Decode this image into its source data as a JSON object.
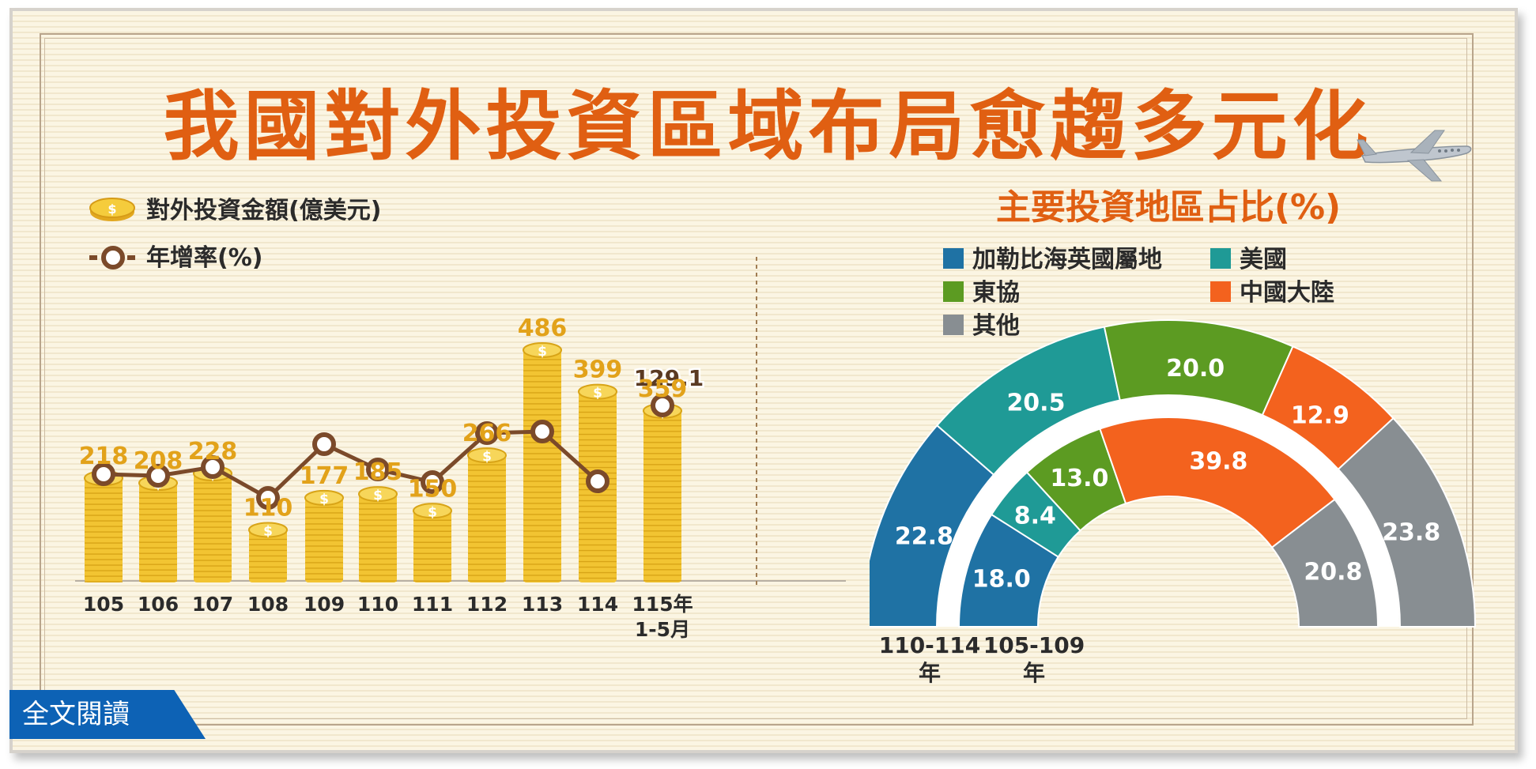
{
  "title": "我國對外投資區域布局愈趨多元化",
  "read_button": "全文閱讀",
  "legend": {
    "amount": "對外投資金額(億美元)",
    "growth": "年增率(%)"
  },
  "pie_title": "主要投資地區占比(%)",
  "pie_legend": [
    "加勒比海英國屬地",
    "美國",
    "東協",
    "中國大陸",
    "其他"
  ],
  "colors": {
    "title": "#e05f12",
    "coin": "#f2c432",
    "coin_dark": "#d8a417",
    "value_label": "#e2a21a",
    "line": "#7b4a2a",
    "caribbean": "#1f72a4",
    "usa": "#1f9a96",
    "asean": "#5c9b22",
    "china": "#f3621e",
    "other": "#888e92",
    "read_button": "#0d62b5"
  },
  "chart_data": [
    {
      "type": "bar",
      "categories": [
        "105",
        "106",
        "107",
        "108",
        "109",
        "110",
        "111",
        "112",
        "113",
        "114",
        "115年\n1-5月"
      ],
      "series": [
        {
          "name": "對外投資金額(億美元)",
          "values": [
            218,
            208,
            228,
            110,
            177,
            185,
            150,
            266,
            486,
            399,
            359
          ]
        },
        {
          "name": "年增率(%)",
          "type": "line",
          "values": [
            null,
            null,
            null,
            null,
            null,
            null,
            null,
            null,
            null,
            null,
            129.1
          ]
        }
      ]
    },
    {
      "type": "pie",
      "title": "主要投資地區占比(%)",
      "series": [
        {
          "name": "110-114\n年",
          "categories": [
            "加勒比海英國屬地",
            "美國",
            "東協",
            "中國大陸",
            "其他"
          ],
          "values": [
            22.8,
            20.5,
            20.0,
            12.9,
            23.8
          ]
        },
        {
          "name": "105-109\n年",
          "categories": [
            "加勒比海英國屬地",
            "美國",
            "東協",
            "中國大陸",
            "其他"
          ],
          "values": [
            18.0,
            8.4,
            13.0,
            39.8,
            20.8
          ]
        }
      ]
    }
  ]
}
